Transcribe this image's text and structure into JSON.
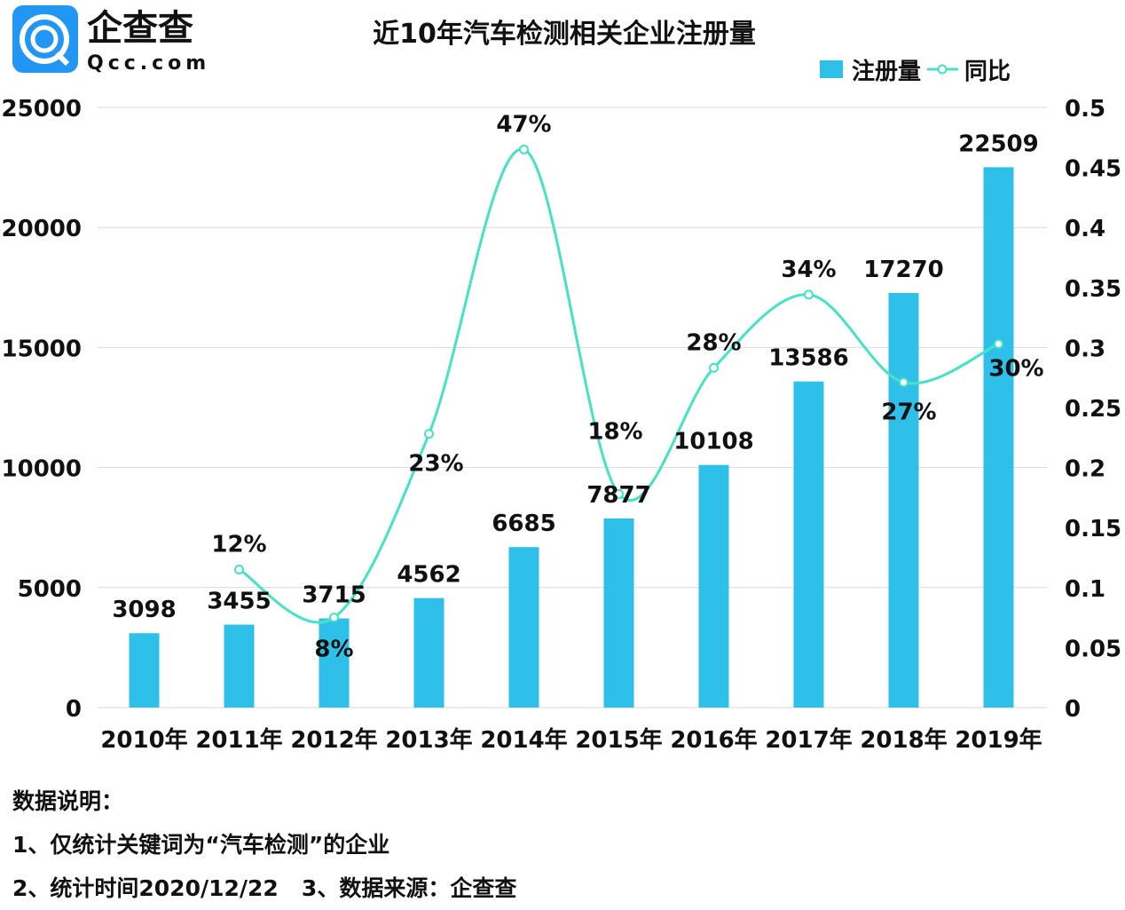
{
  "logo": {
    "name": "企查查",
    "domain": "Qcc.com",
    "color": "#2196f3"
  },
  "chart_data": {
    "type": "bar+line",
    "title": "近10年汽车检测相关企业注册量",
    "categories": [
      "2010年",
      "2011年",
      "2012年",
      "2013年",
      "2014年",
      "2015年",
      "2016年",
      "2017年",
      "2018年",
      "2019年"
    ],
    "series": [
      {
        "name": "注册量",
        "type": "bar",
        "axis": "left",
        "color": "#2ec0e8",
        "values": [
          3098,
          3455,
          3715,
          4562,
          6685,
          7877,
          10108,
          13586,
          17270,
          22509
        ],
        "labels": [
          "3098",
          "3455",
          "3715",
          "4562",
          "6685",
          "7877",
          "10108",
          "13586",
          "17270",
          "22509"
        ]
      },
      {
        "name": "同比",
        "type": "line",
        "axis": "right",
        "color": "#45e3c6",
        "values": [
          null,
          0.115,
          0.075,
          0.228,
          0.465,
          0.178,
          0.283,
          0.344,
          0.271,
          0.303
        ],
        "labels": [
          "",
          "12%",
          "8%",
          "23%",
          "47%",
          "18%",
          "28%",
          "34%",
          "27%",
          "30%"
        ]
      }
    ],
    "y_left": {
      "range": [
        0,
        25000
      ],
      "ticks": [
        "0",
        "5000",
        "10000",
        "15000",
        "20000",
        "25000"
      ]
    },
    "y_right": {
      "range": [
        0,
        0.5
      ],
      "ticks": [
        "0",
        "0.05",
        "0.1",
        "0.15",
        "0.2",
        "0.25",
        "0.3",
        "0.35",
        "0.4",
        "0.45",
        "0.5"
      ]
    },
    "grid": true,
    "legend": "top-right"
  },
  "notes": {
    "heading": "数据说明：",
    "line1": "1、仅统计关键词为“汽车检测”的企业",
    "line2": "2、统计时间2020/12/22   3、数据来源：企查查"
  }
}
